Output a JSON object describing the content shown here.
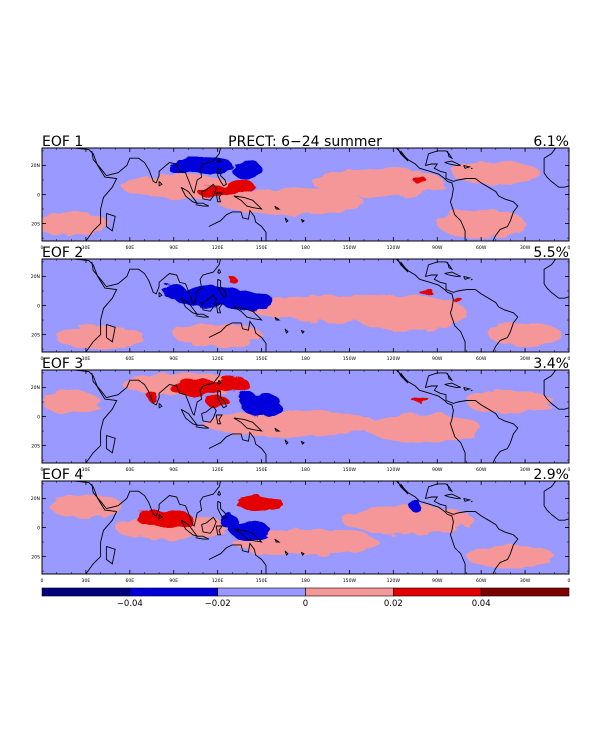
{
  "figure": {
    "title": "PRECT: 6−24 summer",
    "colors": {
      "neg_strong": "#00007f",
      "neg_mid": "#0000dd",
      "neg_weak": "#9999ff",
      "pos_weak": "#f59799",
      "pos_mid": "#e50000",
      "pos_strong": "#7f0000",
      "land": "#000000"
    }
  },
  "chart_data": {
    "type": "heatmap",
    "title": "PRECT: 6−24 summer",
    "x_ticks": [
      "0",
      "30E",
      "60E",
      "90E",
      "120E",
      "150E",
      "180",
      "150W",
      "120W",
      "90W",
      "60W",
      "30W",
      "0"
    ],
    "y_ticks": [
      "20N",
      "0",
      "20S"
    ],
    "panels": [
      {
        "label": "EOF 1",
        "variance": "6.1%"
      },
      {
        "label": "EOF 2",
        "variance": "5.5%"
      },
      {
        "label": "EOF 3",
        "variance": "3.4%"
      },
      {
        "label": "EOF 4",
        "variance": "2.9%"
      }
    ],
    "colorbar": {
      "ticks": [
        "−0.04",
        "−0.02",
        "0",
        "0.02",
        "0.04"
      ],
      "range": [
        -0.06,
        0.06
      ],
      "bins": [
        -0.06,
        -0.04,
        -0.02,
        0,
        0.02,
        0.04,
        0.06
      ]
    }
  }
}
